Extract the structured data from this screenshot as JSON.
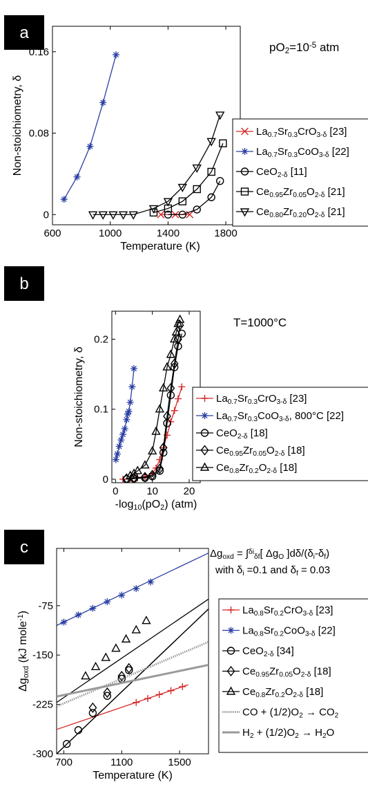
{
  "panels": [
    {
      "badge": "a",
      "annotation": [
        "pO",
        "2",
        "=10",
        "-5",
        " atm"
      ],
      "chart_data": {
        "type": "line",
        "xlabel": "Temperature (K)",
        "ylabel": "Non-stoichiometry, δ",
        "xlim": [
          600,
          1900
        ],
        "ylim": [
          -0.01,
          0.185
        ],
        "xticks": [
          600,
          1000,
          1400,
          1800
        ],
        "yticks": [
          0,
          0.08,
          0.16
        ],
        "ytick_labels": [
          "0",
          "0.08",
          "0.16"
        ],
        "legend_position": "right",
        "series": [
          {
            "legend": [
              [
                "La",
                ""
              ],
              [
                "0.7",
                "sub"
              ],
              [
                "Sr",
                ""
              ],
              [
                "0.3",
                "sub"
              ],
              [
                "CrO",
                ""
              ],
              [
                "3-δ",
                "sub"
              ],
              [
                " [23]",
                ""
              ]
            ],
            "color": "#d62728",
            "marker": "x",
            "x": [
              1350,
              1450,
              1550
            ],
            "y": [
              0.0,
              0.0,
              0.0
            ]
          },
          {
            "legend": [
              [
                "La",
                ""
              ],
              [
                "0.7",
                "sub"
              ],
              [
                "Sr",
                ""
              ],
              [
                "0.3",
                "sub"
              ],
              [
                "CoO",
                ""
              ],
              [
                "3-δ",
                "sub"
              ],
              [
                " [22]",
                ""
              ]
            ],
            "color": "#2a3ea3",
            "marker": "star",
            "x": [
              680,
              770,
              860,
              950,
              1040
            ],
            "y": [
              0.015,
              0.037,
              0.067,
              0.11,
              0.157
            ]
          },
          {
            "legend": [
              [
                "CeO",
                ""
              ],
              [
                "2-δ",
                "sub"
              ],
              [
                " [11]",
                ""
              ]
            ],
            "color": "#000000",
            "marker": "circle",
            "x": [
              1400,
              1500,
              1600,
              1700,
              1760
            ],
            "y": [
              0.0,
              0.0,
              0.005,
              0.017,
              0.033
            ]
          },
          {
            "legend": [
              [
                "Ce",
                ""
              ],
              [
                "0.95",
                "sub"
              ],
              [
                "Zr",
                ""
              ],
              [
                "0.05",
                "sub"
              ],
              [
                "O",
                ""
              ],
              [
                "2-δ",
                "sub"
              ],
              [
                " [21]",
                ""
              ]
            ],
            "color": "#000000",
            "marker": "square",
            "x": [
              1300,
              1400,
              1500,
              1600,
              1700,
              1780
            ],
            "y": [
              0.002,
              0.006,
              0.013,
              0.025,
              0.042,
              0.07
            ]
          },
          {
            "legend": [
              [
                "Ce",
                ""
              ],
              [
                "0.80",
                "sub"
              ],
              [
                "Zr",
                ""
              ],
              [
                "0.20",
                "sub"
              ],
              [
                "O",
                ""
              ],
              [
                "2-δ",
                "sub"
              ],
              [
                " [21]",
                ""
              ]
            ],
            "color": "#000000",
            "marker": "triangle_down",
            "x": [
              880,
              950,
              1020,
              1090,
              1160,
              1300,
              1400,
              1500,
              1600,
              1700,
              1760
            ],
            "y": [
              0.0,
              0.0,
              0.0,
              0.0,
              0.0,
              0.006,
              0.013,
              0.027,
              0.046,
              0.072,
              0.098
            ]
          }
        ]
      }
    },
    {
      "badge": "b",
      "annotation": [
        "T=1000°C"
      ],
      "chart_data": {
        "type": "line",
        "xlabel": [
          "-log",
          "10",
          "(pO",
          "2",
          ") (atm)"
        ],
        "ylabel": "Non-stoichiometry, δ",
        "xlim": [
          -1,
          23
        ],
        "ylim": [
          -0.005,
          0.24
        ],
        "xticks": [
          0,
          10,
          20
        ],
        "yticks": [
          0,
          0.1,
          0.2
        ],
        "ytick_labels": [
          "0",
          "0.1",
          "0.2"
        ],
        "legend_position": "right",
        "series": [
          {
            "legend": [
              [
                "La",
                ""
              ],
              [
                "0.7",
                "sub"
              ],
              [
                "Sr",
                ""
              ],
              [
                "0.3",
                "sub"
              ],
              [
                "CrO",
                ""
              ],
              [
                "3-δ",
                "sub"
              ],
              [
                " [23]",
                ""
              ]
            ],
            "color": "#d62728",
            "marker": "plus",
            "x": [
              2,
              4,
              6,
              8,
              10,
              11,
              12,
              13,
              14,
              15,
              16,
              17,
              18
            ],
            "y": [
              0.0,
              0.001,
              0.002,
              0.004,
              0.008,
              0.016,
              0.028,
              0.045,
              0.063,
              0.082,
              0.098,
              0.115,
              0.132
            ]
          },
          {
            "legend": [
              [
                "La",
                ""
              ],
              [
                "0.7",
                "sub"
              ],
              [
                "Sr",
                ""
              ],
              [
                "0.3",
                "sub"
              ],
              [
                "CoO",
                ""
              ],
              [
                "3-δ",
                "sub"
              ],
              [
                ", 800°C [22]",
                ""
              ]
            ],
            "color": "#2a3ea3",
            "marker": "star",
            "x": [
              0.1,
              0.5,
              1,
              1.5,
              2,
              2.5,
              3,
              3.3,
              3.6,
              4,
              4.5,
              5
            ],
            "y": [
              0.028,
              0.036,
              0.047,
              0.056,
              0.064,
              0.072,
              0.085,
              0.093,
              0.097,
              0.11,
              0.132,
              0.158
            ]
          },
          {
            "legend": [
              [
                "CeO",
                ""
              ],
              [
                "2-δ",
                "sub"
              ],
              [
                " [18]",
                ""
              ]
            ],
            "color": "#000000",
            "marker": "circle",
            "x": [
              3,
              5,
              8,
              10,
              12,
              13,
              14,
              15,
              16,
              17,
              18
            ],
            "y": [
              0.0,
              0.001,
              0.002,
              0.004,
              0.012,
              0.038,
              0.08,
              0.12,
              0.16,
              0.19,
              0.208
            ]
          },
          {
            "legend": [
              [
                "Ce",
                ""
              ],
              [
                "0.95",
                "sub"
              ],
              [
                "Zr",
                ""
              ],
              [
                "0.05",
                "sub"
              ],
              [
                "O",
                ""
              ],
              [
                "2-δ",
                "sub"
              ],
              [
                " [18]",
                ""
              ]
            ],
            "color": "#000000",
            "marker": "diamond",
            "x": [
              3,
              5,
              8,
              10,
              12,
              13,
              14,
              15,
              16,
              17,
              17.5
            ],
            "y": [
              0.001,
              0.002,
              0.003,
              0.006,
              0.015,
              0.045,
              0.09,
              0.13,
              0.165,
              0.2,
              0.22
            ]
          },
          {
            "legend": [
              [
                "Ce",
                ""
              ],
              [
                "0.8",
                "sub"
              ],
              [
                "Zr",
                ""
              ],
              [
                "0.2",
                "sub"
              ],
              [
                "O",
                ""
              ],
              [
                "2-δ",
                "sub"
              ],
              [
                " [18]",
                ""
              ]
            ],
            "color": "#000000",
            "marker": "triangle",
            "x": [
              4,
              5,
              6,
              8,
              10,
              11,
              12,
              13,
              14,
              15,
              16,
              16.5,
              17,
              17.5
            ],
            "y": [
              0.005,
              0.008,
              0.012,
              0.02,
              0.04,
              0.068,
              0.1,
              0.13,
              0.16,
              0.178,
              0.2,
              0.21,
              0.222,
              0.228
            ]
          }
        ]
      }
    },
    {
      "badge": "c",
      "annotation": [
        [
          "Δg",
          "oxd",
          " = ∫",
          "δ",
          "i",
          "δ",
          "f",
          "[ Δg",
          "O",
          " ]dδ/(δ",
          "i",
          "-δ",
          "f",
          ")"
        ],
        [
          "with δ",
          "i",
          " =0.1 and δ",
          "f",
          " = 0.03"
        ]
      ],
      "chart_data": {
        "type": "line",
        "xlabel": "Temperature (K)",
        "ylabel": [
          "Δg",
          "oxd",
          " (kJ mole",
          "-1",
          ")"
        ],
        "xlim": [
          650,
          1700
        ],
        "ylim": [
          -300,
          12
        ],
        "xticks": [
          700,
          1100,
          1500
        ],
        "yticks": [
          -300,
          -225,
          -150,
          -75
        ],
        "ytick_labels": [
          "-300",
          "-225",
          "-150",
          "-75"
        ],
        "legend_position": "right",
        "series": [
          {
            "legend": [
              [
                "La",
                ""
              ],
              [
                "0.8",
                "sub"
              ],
              [
                "Sr",
                ""
              ],
              [
                "0.2",
                "sub"
              ],
              [
                "CrO",
                ""
              ],
              [
                "3-δ",
                "sub"
              ],
              [
                " [23]",
                ""
              ]
            ],
            "color": "#d62728",
            "marker": "plus",
            "x": [
              1200,
              1280,
              1360,
              1440,
              1520
            ],
            "y": [
              -222,
              -216,
              -210,
              -204,
              -198
            ],
            "line": {
              "x": [
                650,
                1560
              ],
              "y": [
                -263,
                -195
              ]
            }
          },
          {
            "legend": [
              [
                "La",
                ""
              ],
              [
                "0.8",
                "sub"
              ],
              [
                "Sr",
                ""
              ],
              [
                "0.2",
                "sub"
              ],
              [
                "CoO",
                ""
              ],
              [
                "3-δ",
                "sub"
              ],
              [
                " [22]",
                ""
              ]
            ],
            "color": "#2a3ea3",
            "marker": "star",
            "x": [
              700,
              800,
              900,
              1000,
              1100,
              1200,
              1300
            ],
            "y": [
              -100,
              -89,
              -79,
              -69,
              -59,
              -49,
              -39
            ],
            "line": {
              "x": [
                650,
                1700
              ],
              "y": [
                -105,
                5
              ]
            }
          },
          {
            "legend": [
              [
                "CeO",
                ""
              ],
              [
                "2-δ",
                "sub"
              ],
              [
                " [34]",
                ""
              ]
            ],
            "color": "#000000",
            "marker": "circle",
            "x": [
              720,
              800,
              900,
              1000,
              1100,
              1150
            ],
            "y": [
              -285,
              -264,
              -238,
              -212,
              -186,
              -173
            ],
            "line": {
              "x": [
                650,
                1700
              ],
              "y": [
                -300,
                -80
              ]
            }
          },
          {
            "legend": [
              [
                "Ce",
                ""
              ],
              [
                "0.95",
                "sub"
              ],
              [
                "Zr",
                ""
              ],
              [
                "0.05",
                "sub"
              ],
              [
                "O",
                ""
              ],
              [
                "2-δ",
                "sub"
              ],
              [
                " [18]",
                ""
              ]
            ],
            "color": "#000000",
            "marker": "diamond",
            "x": [
              900,
              1000,
              1100,
              1150
            ],
            "y": [
              -230,
              -207,
              -182,
              -170
            ],
            "line": {
              "x": [
                650,
                1700
              ],
              "y": [
                -300,
                -80
              ]
            }
          },
          {
            "legend": [
              [
                "Ce",
                ""
              ],
              [
                "0.8",
                "sub"
              ],
              [
                "Zr",
                ""
              ],
              [
                "0.2",
                "sub"
              ],
              [
                "O",
                ""
              ],
              [
                "2-δ",
                "sub"
              ],
              [
                " [18]",
                ""
              ]
            ],
            "color": "#000000",
            "marker": "triangle",
            "x": [
              850,
              920,
              990,
              1060,
              1130,
              1200,
              1270
            ],
            "y": [
              -182,
              -168,
              -154,
              -140,
              -126,
              -112,
              -98
            ],
            "line": {
              "x": [
                650,
                1700
              ],
              "y": [
                -222,
                -65
              ]
            }
          },
          {
            "legend": [
              [
                "CO + (1/2)O",
                ""
              ],
              [
                "2",
                "sub"
              ],
              [
                " → CO",
                ""
              ],
              [
                "2",
                "sub"
              ]
            ],
            "color": "#9a9a9a",
            "marker": "none",
            "style": "dotted",
            "x": [
              650,
              1700
            ],
            "y": [
              -228,
              -130
            ]
          },
          {
            "legend": [
              [
                "H",
                ""
              ],
              [
                "2",
                "sub"
              ],
              [
                " + (1/2)O",
                ""
              ],
              [
                "2",
                "sub"
              ],
              [
                " → H",
                ""
              ],
              [
                "2",
                "sub"
              ],
              [
                "O",
                ""
              ]
            ],
            "color": "#9a9a9a",
            "marker": "none",
            "style": "thick",
            "x": [
              650,
              1700
            ],
            "y": [
              -213,
              -165
            ]
          }
        ]
      }
    }
  ]
}
